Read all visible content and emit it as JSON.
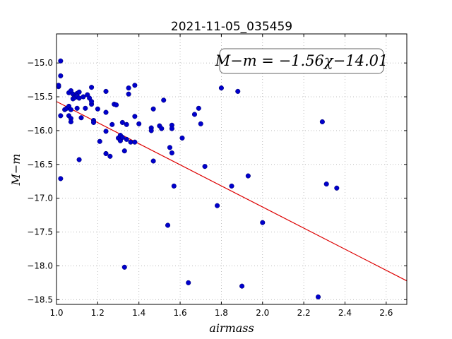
{
  "chart_data": {
    "type": "scatter",
    "title": "2021-11-05_035459",
    "xlabel": "airmass",
    "ylabel": "M−m",
    "xlim": [
      1.0,
      2.7
    ],
    "ylim": [
      -18.57,
      -14.57
    ],
    "x_ticks": [
      1.0,
      1.2,
      1.4,
      1.6,
      1.8,
      2.0,
      2.2,
      2.4,
      2.6
    ],
    "x_tick_labels": [
      "1.0",
      "1.2",
      "1.4",
      "1.6",
      "1.8",
      "2.0",
      "2.2",
      "2.4",
      "2.6"
    ],
    "y_ticks": [
      -15.0,
      -15.5,
      -16.0,
      -16.5,
      -17.0,
      -17.5,
      -18.0,
      -18.5
    ],
    "y_tick_labels": [
      "−15.0",
      "−15.5",
      "−16.0",
      "−16.5",
      "−17.0",
      "−17.5",
      "−18.0",
      "−18.5"
    ],
    "grid": true,
    "annotation": "M−m = −1.56χ−14.01",
    "fit": {
      "slope": -1.56,
      "intercept": -14.01
    },
    "colors": {
      "points": "#0000cc",
      "fit_line": "#dd0000",
      "grid": "#b0b0b0"
    },
    "points": [
      [
        1.02,
        -14.97
      ],
      [
        1.02,
        -15.19
      ],
      [
        1.01,
        -15.35
      ],
      [
        1.01,
        -15.33
      ],
      [
        1.02,
        -15.78
      ],
      [
        1.02,
        -16.71
      ],
      [
        1.04,
        -15.69
      ],
      [
        1.05,
        -15.67
      ],
      [
        1.06,
        -15.44
      ],
      [
        1.06,
        -15.64
      ],
      [
        1.06,
        -15.78
      ],
      [
        1.07,
        -15.82
      ],
      [
        1.07,
        -15.87
      ],
      [
        1.07,
        -15.69
      ],
      [
        1.07,
        -15.41
      ],
      [
        1.08,
        -15.46
      ],
      [
        1.08,
        -15.53
      ],
      [
        1.09,
        -15.49
      ],
      [
        1.09,
        -15.51
      ],
      [
        1.1,
        -15.45
      ],
      [
        1.1,
        -15.49
      ],
      [
        1.1,
        -15.67
      ],
      [
        1.11,
        -15.43
      ],
      [
        1.11,
        -15.52
      ],
      [
        1.11,
        -16.43
      ],
      [
        1.12,
        -15.81
      ],
      [
        1.13,
        -15.5
      ],
      [
        1.14,
        -15.67
      ],
      [
        1.15,
        -15.47
      ],
      [
        1.16,
        -15.52
      ],
      [
        1.17,
        -15.36
      ],
      [
        1.17,
        -15.61
      ],
      [
        1.17,
        -15.57
      ],
      [
        1.18,
        -15.85
      ],
      [
        1.18,
        -15.88
      ],
      [
        1.2,
        -15.68
      ],
      [
        1.21,
        -16.16
      ],
      [
        1.24,
        -15.42
      ],
      [
        1.24,
        -15.73
      ],
      [
        1.24,
        -16.01
      ],
      [
        1.24,
        -16.34
      ],
      [
        1.26,
        -16.38
      ],
      [
        1.27,
        -15.91
      ],
      [
        1.28,
        -15.61
      ],
      [
        1.29,
        -15.62
      ],
      [
        1.3,
        -16.11
      ],
      [
        1.31,
        -16.15
      ],
      [
        1.31,
        -16.07
      ],
      [
        1.32,
        -15.88
      ],
      [
        1.32,
        -16.1
      ],
      [
        1.33,
        -16.3
      ],
      [
        1.33,
        -18.02
      ],
      [
        1.34,
        -15.91
      ],
      [
        1.34,
        -16.13
      ],
      [
        1.35,
        -15.37
      ],
      [
        1.35,
        -15.46
      ],
      [
        1.36,
        -16.17
      ],
      [
        1.38,
        -15.33
      ],
      [
        1.38,
        -15.79
      ],
      [
        1.38,
        -16.17
      ],
      [
        1.4,
        -15.9
      ],
      [
        1.46,
        -15.96
      ],
      [
        1.46,
        -16.0
      ],
      [
        1.47,
        -15.68
      ],
      [
        1.47,
        -16.45
      ],
      [
        1.5,
        -15.93
      ],
      [
        1.51,
        -15.97
      ],
      [
        1.52,
        -15.55
      ],
      [
        1.54,
        -17.4
      ],
      [
        1.55,
        -16.25
      ],
      [
        1.56,
        -15.92
      ],
      [
        1.56,
        -15.97
      ],
      [
        1.56,
        -16.33
      ],
      [
        1.57,
        -16.82
      ],
      [
        1.61,
        -16.11
      ],
      [
        1.64,
        -18.25
      ],
      [
        1.67,
        -15.76
      ],
      [
        1.69,
        -15.67
      ],
      [
        1.7,
        -15.9
      ],
      [
        1.72,
        -16.53
      ],
      [
        1.78,
        -17.11
      ],
      [
        1.8,
        -15.37
      ],
      [
        1.85,
        -16.82
      ],
      [
        1.88,
        -15.42
      ],
      [
        1.9,
        -18.3
      ],
      [
        1.93,
        -16.67
      ],
      [
        2.0,
        -17.36
      ],
      [
        2.27,
        -18.46
      ],
      [
        2.29,
        -15.87
      ],
      [
        2.31,
        -16.79
      ],
      [
        2.36,
        -16.85
      ]
    ]
  }
}
